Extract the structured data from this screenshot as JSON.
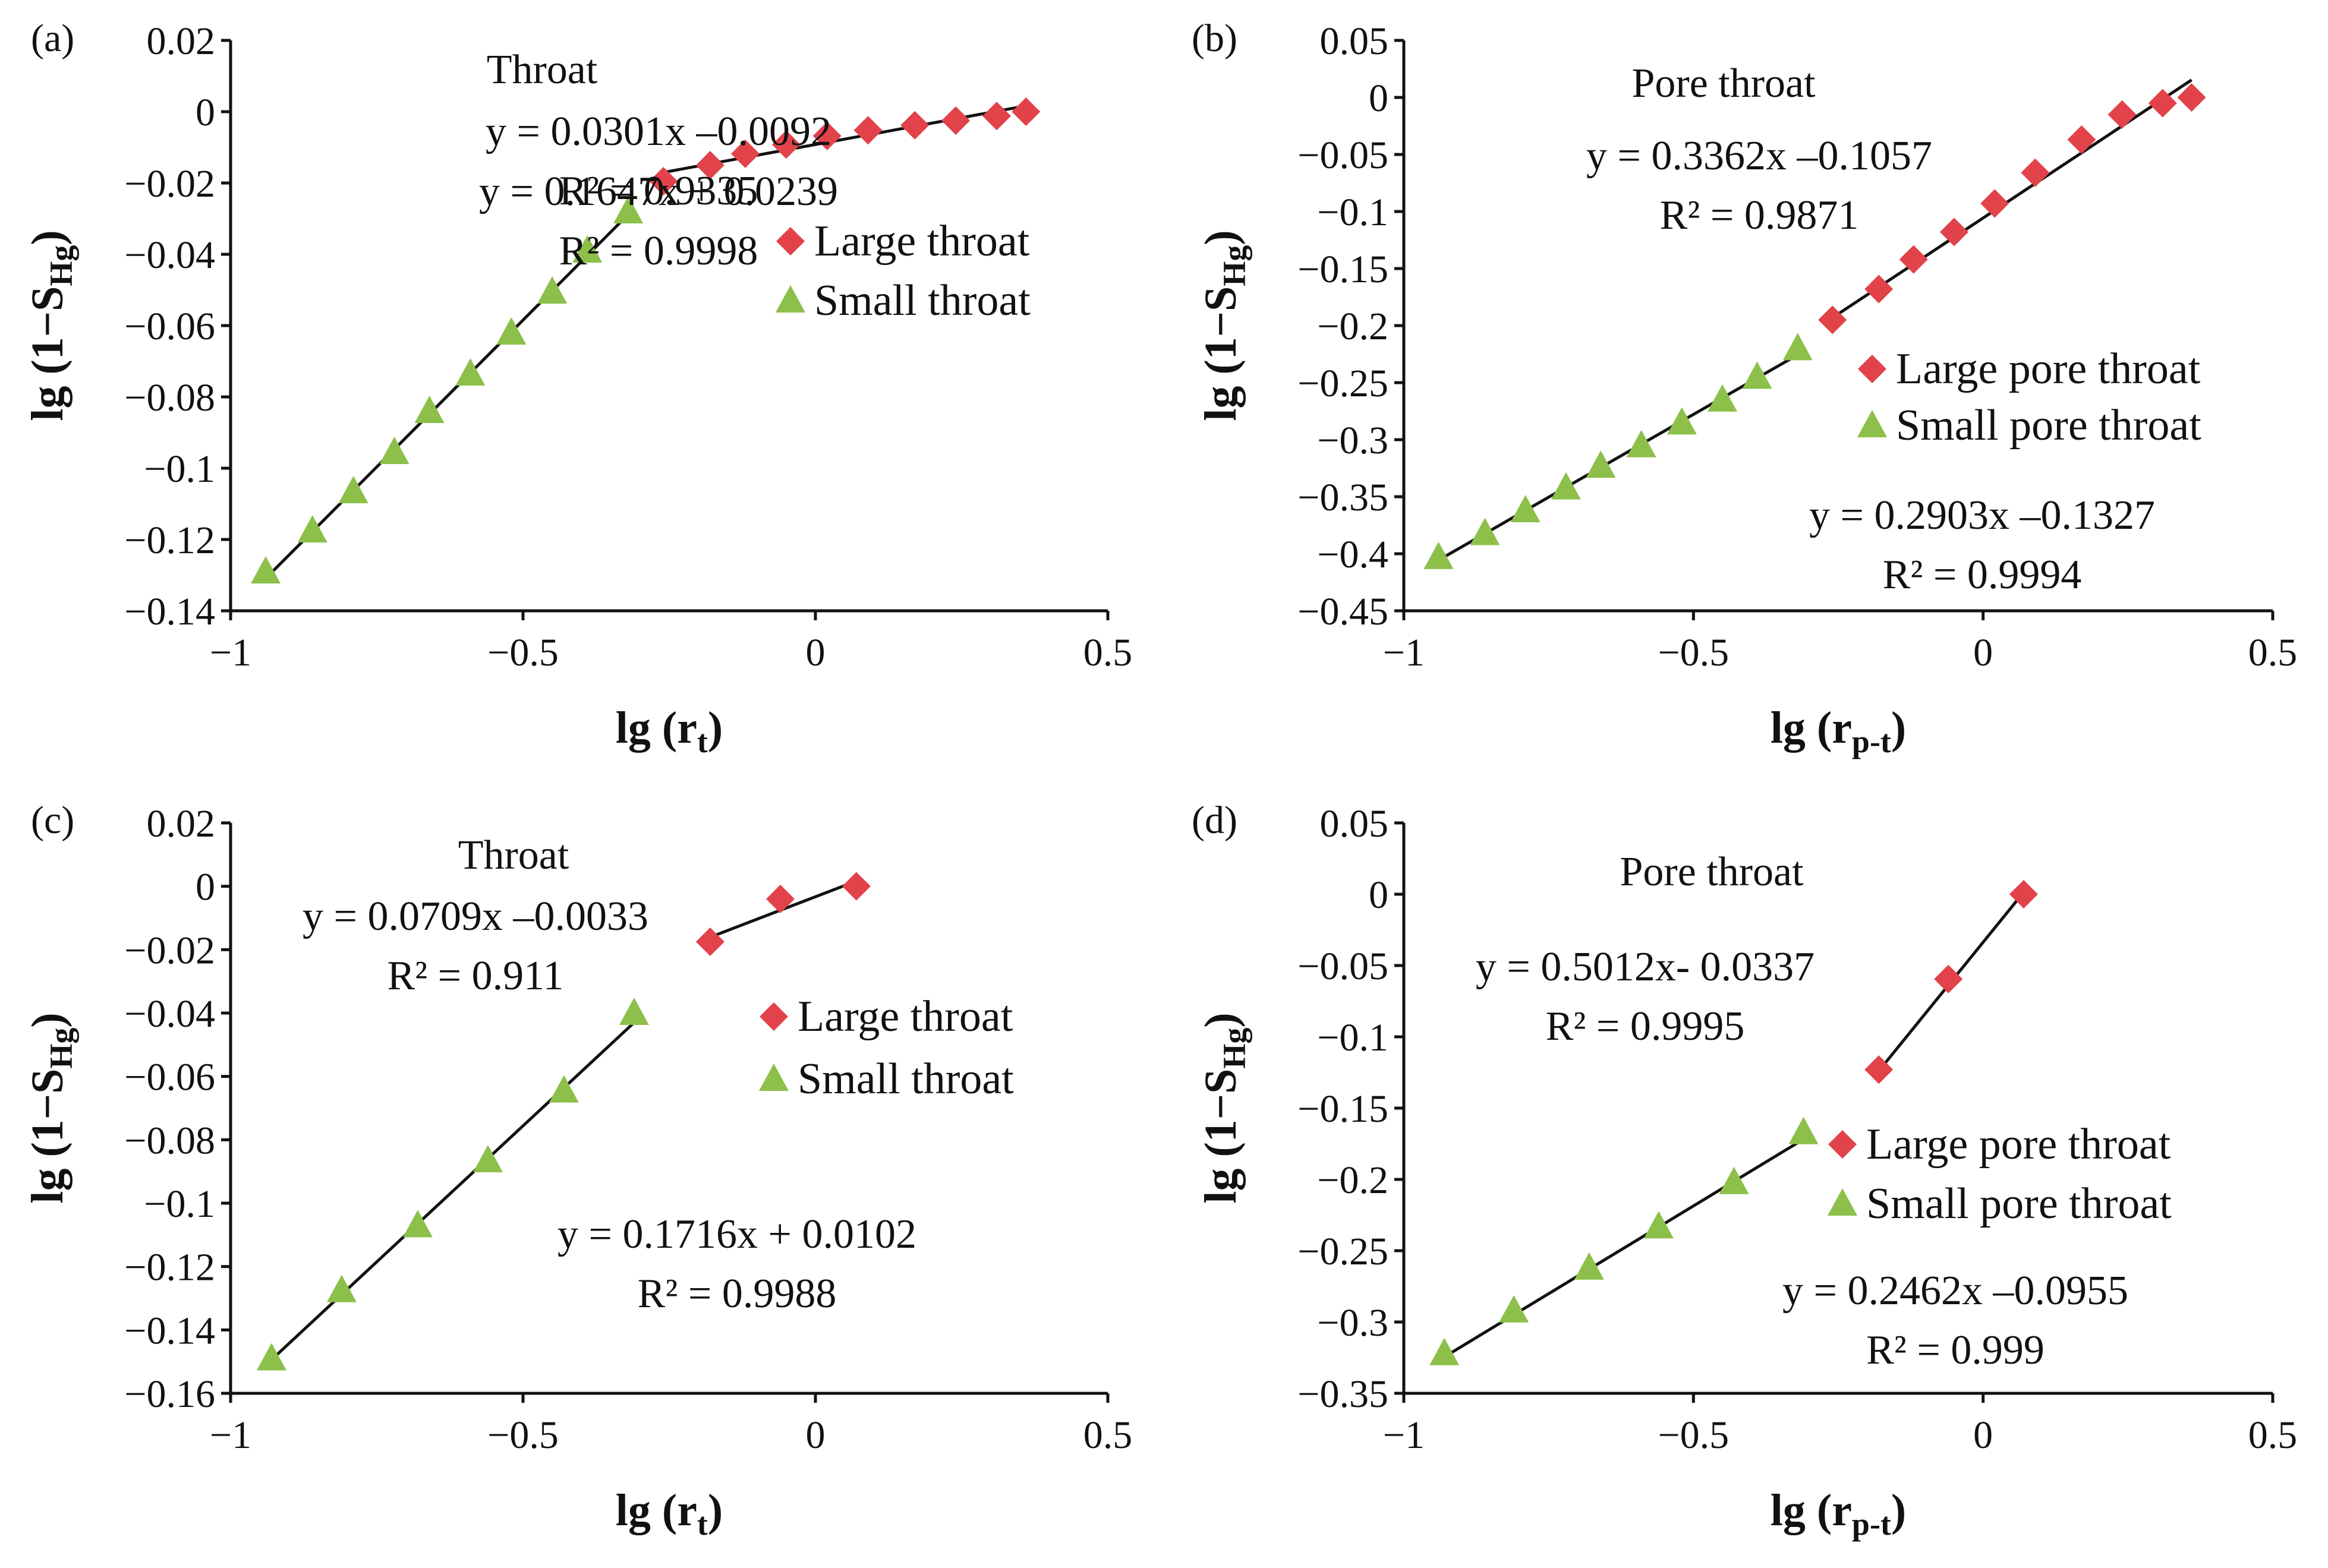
{
  "colors": {
    "large": "#e2424a",
    "small": "#8cc04a",
    "axis": "#111111"
  },
  "chart_data": [
    {
      "type": "scatter",
      "panel": "(a)",
      "title": "Throat",
      "xlabel": "lg (r",
      "xlabel_sub": "t",
      "xlabel_end": ")",
      "ylabel": "lg (1−S",
      "ylabel_sub": "Hg",
      "ylabel_end": ")",
      "xlim": [
        -1,
        0.5
      ],
      "ylim": [
        -0.14,
        0.02
      ],
      "xticks": [
        -1,
        -0.5,
        0,
        0.5
      ],
      "xtick_labels": [
        "−1",
        "−0.5",
        "0",
        "0.5"
      ],
      "yticks": [
        0.02,
        0,
        -0.02,
        -0.04,
        -0.06,
        -0.08,
        -0.1,
        -0.12,
        -0.14
      ],
      "ytick_labels": [
        "0.02",
        "0",
        "−0.02",
        "−0.04",
        "−0.06",
        "−0.08",
        "−0.1",
        "−0.12",
        "−0.14"
      ],
      "legend_position": "right",
      "series": [
        {
          "name": "Large throat",
          "marker": "diamond",
          "x": [
            -0.26,
            -0.18,
            -0.12,
            -0.05,
            0.02,
            0.09,
            0.17,
            0.24,
            0.31,
            0.36
          ],
          "y": [
            -0.0195,
            -0.015,
            -0.0118,
            -0.0092,
            -0.0068,
            -0.0052,
            -0.0038,
            -0.0025,
            -0.0012,
            0.0
          ],
          "fit": {
            "slope": 0.0301,
            "intercept": -0.0092,
            "x_range": [
              -0.26,
              0.36
            ]
          },
          "equation": "y = 0.0301x –0.0092",
          "r2": "R² = 0.9335"
        },
        {
          "name": "Small throat",
          "marker": "triangle",
          "x": [
            -0.94,
            -0.86,
            -0.79,
            -0.72,
            -0.66,
            -0.59,
            -0.52,
            -0.45,
            -0.39,
            -0.32
          ],
          "y": [
            -0.129,
            -0.1175,
            -0.1065,
            -0.0955,
            -0.084,
            -0.0735,
            -0.062,
            -0.0505,
            -0.039,
            -0.028
          ],
          "fit": {
            "slope": 0.1647,
            "intercept": 0.0239,
            "x_range": [
              -0.94,
              -0.32
            ]
          },
          "equation": "y = 0.1647x + 0.0239",
          "r2": "R² = 0.9998"
        }
      ]
    },
    {
      "type": "scatter",
      "panel": "(b)",
      "title": "Pore throat",
      "xlabel": "lg (r",
      "xlabel_sub": "p-t",
      "xlabel_end": ")",
      "ylabel": "lg (1−S",
      "ylabel_sub": "Hg",
      "ylabel_end": ")",
      "xlim": [
        -1,
        0.5
      ],
      "ylim": [
        -0.45,
        0.05
      ],
      "xticks": [
        -1,
        -0.5,
        0,
        0.5
      ],
      "xtick_labels": [
        "−1",
        "−0.5",
        "0",
        "0.5"
      ],
      "yticks": [
        0.05,
        0,
        -0.05,
        -0.1,
        -0.15,
        -0.2,
        -0.25,
        -0.3,
        -0.35,
        -0.4,
        -0.45
      ],
      "ytick_labels": [
        "0.05",
        "0",
        "−0.05",
        "−0.1",
        "−0.15",
        "−0.2",
        "−0.25",
        "−0.3",
        "−0.35",
        "−0.4",
        "−0.45"
      ],
      "legend_position": "right",
      "series": [
        {
          "name": "Large pore throat",
          "marker": "diamond",
          "x": [
            -0.26,
            -0.18,
            -0.12,
            -0.05,
            0.02,
            0.09,
            0.17,
            0.24,
            0.31,
            0.36
          ],
          "y": [
            -0.195,
            -0.168,
            -0.142,
            -0.118,
            -0.093,
            -0.066,
            -0.037,
            -0.015,
            -0.005,
            0.0
          ],
          "fit": {
            "slope": 0.3362,
            "intercept": -0.1057,
            "x_range": [
              -0.26,
              0.36
            ]
          },
          "equation": "y = 0.3362x –0.1057",
          "r2": "R² = 0.9871"
        },
        {
          "name": "Small pore throat",
          "marker": "triangle",
          "x": [
            -0.94,
            -0.86,
            -0.79,
            -0.72,
            -0.66,
            -0.59,
            -0.52,
            -0.45,
            -0.39,
            -0.32
          ],
          "y": [
            -0.403,
            -0.382,
            -0.362,
            -0.342,
            -0.323,
            -0.305,
            -0.285,
            -0.265,
            -0.245,
            -0.22
          ],
          "fit": {
            "slope": 0.2903,
            "intercept": -0.1327,
            "x_range": [
              -0.94,
              -0.32
            ]
          },
          "equation": "y = 0.2903x –0.1327",
          "r2": "R² = 0.9994"
        }
      ]
    },
    {
      "type": "scatter",
      "panel": "(c)",
      "title": "Throat",
      "xlabel": "lg (r",
      "xlabel_sub": "t",
      "xlabel_end": ")",
      "ylabel": "lg (1−S",
      "ylabel_sub": "Hg",
      "ylabel_end": ")",
      "xlim": [
        -1,
        0.5
      ],
      "ylim": [
        -0.16,
        0.02
      ],
      "xticks": [
        -1,
        -0.5,
        0,
        0.5
      ],
      "xtick_labels": [
        "−1",
        "−0.5",
        "0",
        "0.5"
      ],
      "yticks": [
        0.02,
        0,
        -0.02,
        -0.04,
        -0.06,
        -0.08,
        -0.1,
        -0.12,
        -0.14,
        -0.16
      ],
      "ytick_labels": [
        "0.02",
        "0",
        "−0.02",
        "−0.04",
        "−0.06",
        "−0.08",
        "−0.1",
        "−0.12",
        "−0.14",
        "−0.16"
      ],
      "legend_position": "right",
      "series": [
        {
          "name": "Large throat",
          "marker": "diamond",
          "x": [
            -0.18,
            -0.06,
            0.07
          ],
          "y": [
            -0.0175,
            -0.004,
            0.0
          ],
          "fit": {
            "slope": 0.0709,
            "intercept": -0.0033,
            "x_range": [
              -0.18,
              0.07
            ]
          },
          "equation": "y = 0.0709x –0.0033",
          "r2": "R² = 0.911"
        },
        {
          "name": "Small throat",
          "marker": "triangle",
          "x": [
            -0.93,
            -0.81,
            -0.68,
            -0.56,
            -0.43,
            -0.31
          ],
          "y": [
            -0.149,
            -0.1275,
            -0.107,
            -0.0865,
            -0.0645,
            -0.04
          ],
          "fit": {
            "slope": 0.1716,
            "intercept": 0.0102,
            "x_range": [
              -0.93,
              -0.31
            ]
          },
          "equation": "y = 0.1716x + 0.0102",
          "r2": "R² = 0.9988"
        }
      ]
    },
    {
      "type": "scatter",
      "panel": "(d)",
      "title": "Pore throat",
      "xlabel": "lg (r",
      "xlabel_sub": "p-t",
      "xlabel_end": ")",
      "ylabel": "lg (1−S",
      "ylabel_sub": "Hg",
      "ylabel_end": ")",
      "xlim": [
        -1,
        0.5
      ],
      "ylim": [
        -0.35,
        0.05
      ],
      "xticks": [
        -1,
        -0.5,
        0,
        0.5
      ],
      "xtick_labels": [
        "−1",
        "−0.5",
        "0",
        "0.5"
      ],
      "yticks": [
        0.05,
        0,
        -0.05,
        -0.1,
        -0.15,
        -0.2,
        -0.25,
        -0.3,
        -0.35
      ],
      "ytick_labels": [
        "0.05",
        "0",
        "−0.05",
        "−0.1",
        "−0.15",
        "−0.2",
        "−0.25",
        "−0.3",
        "−0.35"
      ],
      "legend_position": "right",
      "series": [
        {
          "name": "Large pore throat",
          "marker": "diamond",
          "x": [
            -0.18,
            -0.06,
            0.07
          ],
          "y": [
            -0.123,
            -0.0595,
            0.0
          ],
          "fit": {
            "slope": 0.5012,
            "intercept": -0.0337,
            "x_range": [
              -0.18,
              0.07
            ]
          },
          "equation": "y = 0.5012x- 0.0337",
          "r2": "R² = 0.9995"
        },
        {
          "name": "Small pore throat",
          "marker": "triangle",
          "x": [
            -0.93,
            -0.81,
            -0.68,
            -0.56,
            -0.43,
            -0.31
          ],
          "y": [
            -0.322,
            -0.292,
            -0.262,
            -0.233,
            -0.202,
            -0.167
          ],
          "fit": {
            "slope": 0.2462,
            "intercept": -0.0955,
            "x_range": [
              -0.93,
              -0.31
            ]
          },
          "equation": "y = 0.2462x –0.0955",
          "r2": "R² = 0.999"
        }
      ]
    }
  ]
}
